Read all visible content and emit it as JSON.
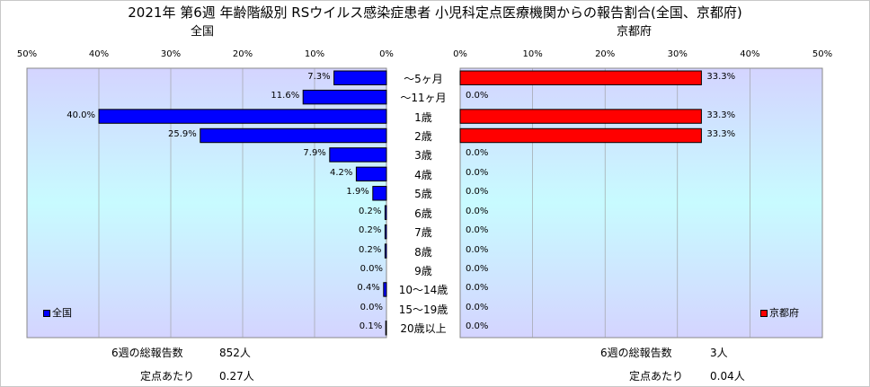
{
  "title": "2021年 第6週 年齢階級別 RSウイルス感染症患者 小児科定点医療機関からの報告割合(全国、京都府)",
  "panels": {
    "left": {
      "subtitle": "全国",
      "legend": "全国",
      "color": "#0000ff"
    },
    "right": {
      "subtitle": "京都府",
      "legend": "京都府",
      "color": "#ff0000"
    }
  },
  "ticks_left": [
    "50%",
    "40%",
    "30%",
    "20%",
    "10%",
    "0%"
  ],
  "ticks_right": [
    "0%",
    "10%",
    "20%",
    "30%",
    "40%",
    "50%"
  ],
  "chart_data": {
    "type": "bar",
    "categories": [
      "～5ヶ月",
      "～11ヶ月",
      "1歳",
      "2歳",
      "3歳",
      "4歳",
      "5歳",
      "6歳",
      "7歳",
      "8歳",
      "9歳",
      "10～14歳",
      "15～19歳",
      "20歳以上"
    ],
    "series": [
      {
        "name": "全国",
        "values": [
          7.3,
          11.6,
          40.0,
          25.9,
          7.9,
          4.2,
          1.9,
          0.2,
          0.2,
          0.2,
          0.0,
          0.4,
          0.0,
          0.1
        ],
        "labels": [
          "7.3%",
          "11.6%",
          "40.0%",
          "25.9%",
          "7.9%",
          "4.2%",
          "1.9%",
          "0.2%",
          "0.2%",
          "0.2%",
          "0.0%",
          "0.4%",
          "0.0%",
          "0.1%"
        ]
      },
      {
        "name": "京都府",
        "values": [
          33.3,
          0.0,
          33.3,
          33.3,
          0.0,
          0.0,
          0.0,
          0.0,
          0.0,
          0.0,
          0.0,
          0.0,
          0.0,
          0.0
        ],
        "labels": [
          "33.3%",
          "0.0%",
          "33.3%",
          "33.3%",
          "0.0%",
          "0.0%",
          "0.0%",
          "0.0%",
          "0.0%",
          "0.0%",
          "0.0%",
          "0.0%",
          "0.0%",
          "0.0%"
        ]
      }
    ],
    "xlim": [
      0,
      50
    ]
  },
  "stats": {
    "left": {
      "total_label": "6週の総報告数",
      "total_value": "852人",
      "per_label": "定点あたり",
      "per_value": "0.27人"
    },
    "right": {
      "total_label": "6週の総報告数",
      "total_value": "3人",
      "per_label": "定点あたり",
      "per_value": "0.04人"
    }
  }
}
